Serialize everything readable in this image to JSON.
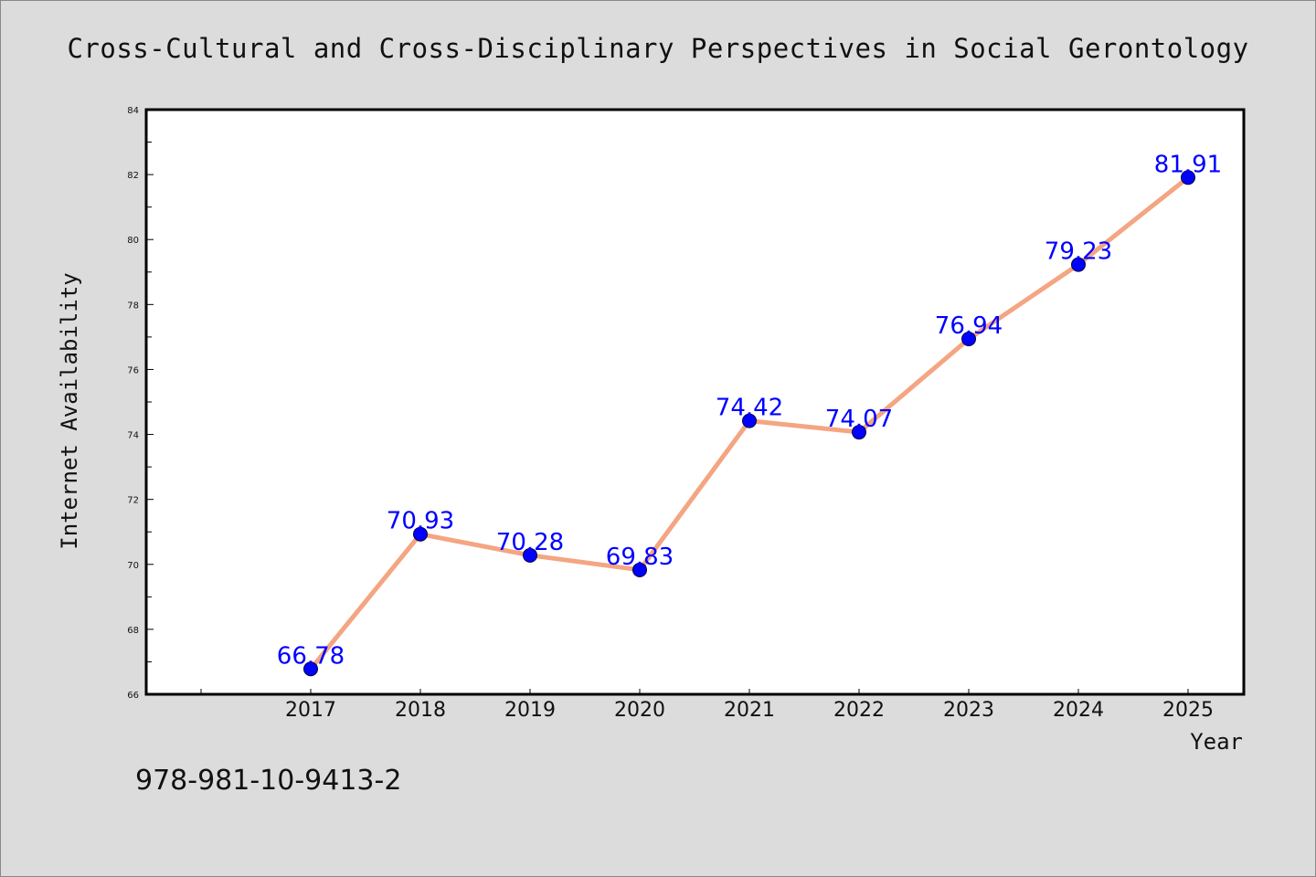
{
  "chart_data": {
    "type": "line",
    "title": "Cross-Cultural and Cross-Disciplinary Perspectives in Social Gerontology",
    "xlabel": "Year",
    "ylabel": "Internet Availability",
    "categories": [
      "2017",
      "2018",
      "2019",
      "2020",
      "2021",
      "2022",
      "2023",
      "2024",
      "2025"
    ],
    "series": [
      {
        "values": [
          66.78,
          70.93,
          70.28,
          69.83,
          74.42,
          74.07,
          76.94,
          79.23,
          81.91
        ]
      }
    ],
    "data_labels": [
      "66.78",
      "70.93",
      "70.28",
      "69.83",
      "74.42",
      "74.07",
      "76.94",
      "79.23",
      "81.91"
    ],
    "ylim": [
      66,
      84
    ],
    "yticks": [
      "66",
      "68",
      "70",
      "72",
      "74",
      "76",
      "78",
      "80",
      "82",
      "84"
    ],
    "grid": false,
    "legend": "none",
    "colors": {
      "line": "#f4a582",
      "marker": "#0000ff",
      "label": "#0000ff"
    }
  },
  "footer": {
    "isbn": "978-981-10-9413-2"
  }
}
